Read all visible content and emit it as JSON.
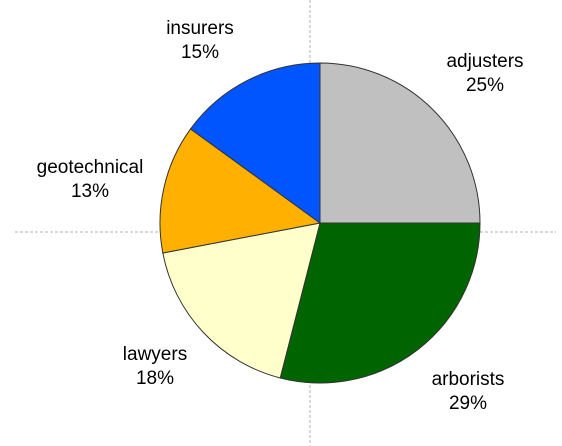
{
  "chart_data": {
    "type": "pie",
    "title": "",
    "start": "12 o'clock",
    "direction": "clockwise",
    "grid": "center crosshair",
    "slices": [
      {
        "label": "adjusters",
        "value": 25,
        "pct_label": "25%",
        "color": "#c0c0c0"
      },
      {
        "label": "arborists",
        "value": 29,
        "pct_label": "29%",
        "color": "#006400"
      },
      {
        "label": "lawyers",
        "value": 18,
        "pct_label": "18%",
        "color": "#ffffcc"
      },
      {
        "label": "geotechnical",
        "value": 13,
        "pct_label": "13%",
        "color": "#ffb000"
      },
      {
        "label": "insurers",
        "value": 15,
        "pct_label": "15%",
        "color": "#0055ff"
      }
    ]
  }
}
